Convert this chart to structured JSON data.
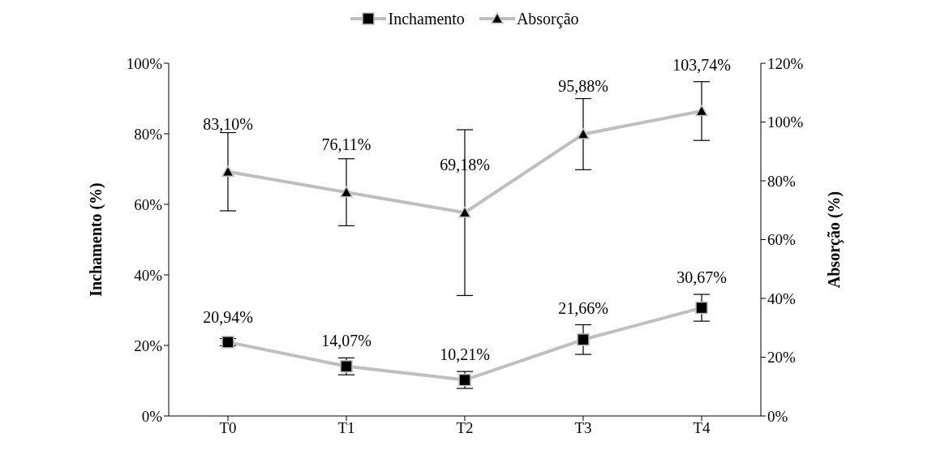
{
  "chart_data": {
    "type": "line",
    "categories": [
      "T0",
      "T1",
      "T2",
      "T3",
      "T4"
    ],
    "ylabel": "Inchamento (%)",
    "y2label": "Absorção (%)",
    "ylim": [
      0,
      100
    ],
    "yticks": [
      {
        "value": 0,
        "label": "0%"
      },
      {
        "value": 20,
        "label": "20%"
      },
      {
        "value": 40,
        "label": "40%"
      },
      {
        "value": 60,
        "label": "60%"
      },
      {
        "value": 80,
        "label": "80%"
      },
      {
        "value": 100,
        "label": "100%"
      }
    ],
    "y2lim": [
      0,
      120
    ],
    "y2ticks": [
      {
        "value": 0,
        "label": "0%"
      },
      {
        "value": 20,
        "label": "20%"
      },
      {
        "value": 40,
        "label": "40%"
      },
      {
        "value": 60,
        "label": "60%"
      },
      {
        "value": 80,
        "label": "80%"
      },
      {
        "value": 100,
        "label": "100%"
      },
      {
        "value": 120,
        "label": "120%"
      }
    ],
    "grid": false,
    "legend": "top",
    "series": [
      {
        "name": "Inchamento",
        "color": "#bfbfbf",
        "marker": "square",
        "values": [
          20.94,
          14.07,
          10.21,
          21.66,
          30.67
        ],
        "errors": [
          1,
          2.4,
          2.4,
          4.2,
          3.8
        ],
        "value_labels": [
          "20,94%",
          "14,07%",
          "10,21%",
          "21,66%",
          "30,67%"
        ]
      },
      {
        "name": "Absorção",
        "color": "#bfbfbf",
        "marker": "triangle",
        "axis": "y2",
        "values": [
          83.1,
          76.11,
          69.18,
          95.88,
          103.74
        ],
        "errors": [
          13.3,
          11.4,
          28.2,
          12.1,
          10
        ],
        "value_labels": [
          "83,10%",
          "76,11%",
          "69,18%",
          "95,88%",
          "103,74%"
        ]
      }
    ]
  }
}
